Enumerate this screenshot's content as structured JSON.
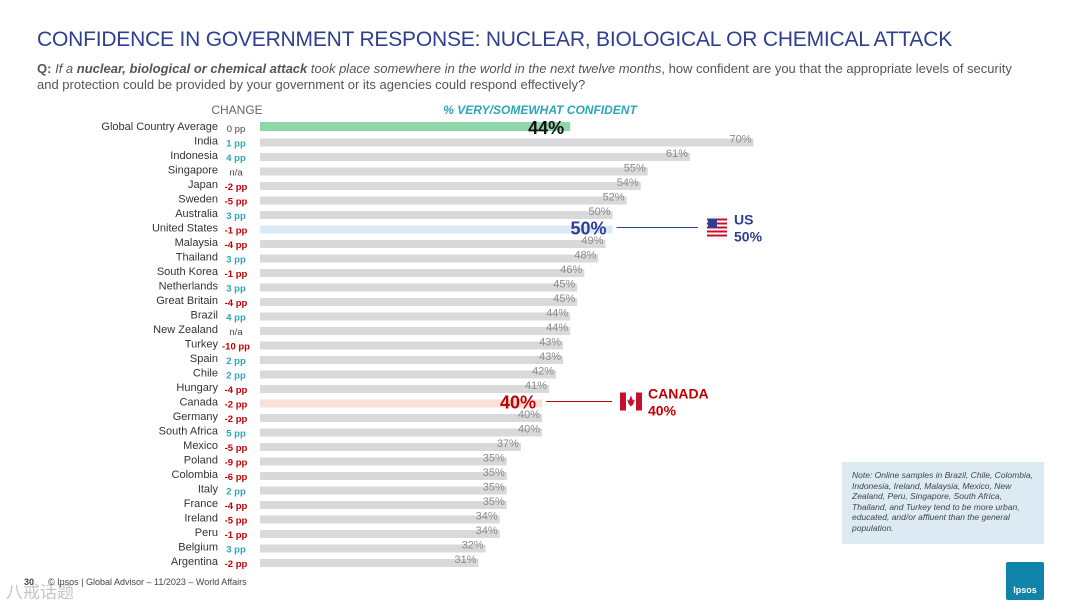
{
  "title": "CONFIDENCE IN GOVERNMENT RESPONSE: NUCLEAR, BIOLOGICAL OR CHEMICAL ATTACK",
  "question": {
    "label": "Q:",
    "part1": "If a",
    "bold": "nuclear, biological or chemical attack",
    "part2": "took place somewhere in the world in the next twelve months",
    "part3": ", how confident are you that the appropriate levels of security and protection could be provided by your government or its agencies could respond effectively?"
  },
  "note": "Note: Online samples in Brazil, Chile, Colombia, Indonesia, Ireland, Malaysia, Mexico, New Zealand, Peru, Singapore, South Africa, Thailand, and Turkey tend to be more urban, educated, and/or affluent than the general population.",
  "footer": "© Ipsos | Global Advisor – 11/2023 – World Affairs",
  "page_number": "30",
  "watermark": "八戒话题",
  "logo_text": "Ipsos",
  "colors": {
    "title": "#2e3f8f",
    "bar": "#d9d9d9",
    "global_bar": "#8fd6a8",
    "us_bar": "#dbe8f7",
    "canada_bar": "#fbe0d8",
    "positive_change": "#2aa6b8",
    "negative_change": "#c00000",
    "neutral_change": "#444444",
    "header": "#2aa6b8",
    "us_callout": "#2e3f8f",
    "canada_callout": "#c00000"
  },
  "chart_data": {
    "type": "bar",
    "orientation": "horizontal",
    "title": "% VERY/SOMEWHAT CONFIDENT",
    "change_header": "CHANGE",
    "categories": [
      "Global Country Average",
      "India",
      "Indonesia",
      "Singapore",
      "Japan",
      "Sweden",
      "Australia",
      "United States",
      "Malaysia",
      "Thailand",
      "South Korea",
      "Netherlands",
      "Great Britain",
      "Brazil",
      "New Zealand",
      "Turkey",
      "Spain",
      "Chile",
      "Hungary",
      "Canada",
      "Germany",
      "South Africa",
      "Mexico",
      "Poland",
      "Colombia",
      "Italy",
      "France",
      "Ireland",
      "Peru",
      "Belgium",
      "Argentina"
    ],
    "values": [
      44,
      70,
      61,
      55,
      54,
      52,
      50,
      50,
      49,
      48,
      46,
      45,
      45,
      44,
      44,
      43,
      43,
      42,
      41,
      40,
      40,
      40,
      37,
      35,
      35,
      35,
      35,
      34,
      34,
      32,
      31
    ],
    "value_labels": [
      "44%",
      "70%",
      "61%",
      "55%",
      "54%",
      "52%",
      "50%",
      "50%",
      "49%",
      "48%",
      "46%",
      "45%",
      "45%",
      "44%",
      "44%",
      "43%",
      "43%",
      "42%",
      "41%",
      "40%",
      "40%",
      "40%",
      "37%",
      "35%",
      "35%",
      "35%",
      "35%",
      "34%",
      "34%",
      "32%",
      "31%"
    ],
    "change": [
      "0 pp",
      "1 pp",
      "4 pp",
      "n/a",
      "-2 pp",
      "-5 pp",
      "3 pp",
      "-1 pp",
      "-4 pp",
      "3 pp",
      "-1 pp",
      "3 pp",
      "-4 pp",
      "4 pp",
      "n/a",
      "-10 pp",
      "2 pp",
      "2 pp",
      "-4 pp",
      "-2 pp",
      "-2 pp",
      "5 pp",
      "-5 pp",
      "-9 pp",
      "-6 pp",
      "2 pp",
      "-4 pp",
      "-5 pp",
      "-1 pp",
      "3 pp",
      "-2 pp"
    ],
    "xlim": [
      0,
      100
    ],
    "highlights": {
      "Global Country Average": "global",
      "United States": "us",
      "Canada": "canada"
    },
    "callouts": [
      {
        "country": "United States",
        "label": "US",
        "value": "50%",
        "flag": "us-flag-icon"
      },
      {
        "country": "Canada",
        "label": "CANADA",
        "value": "40%",
        "flag": "canada-flag-icon"
      }
    ]
  }
}
